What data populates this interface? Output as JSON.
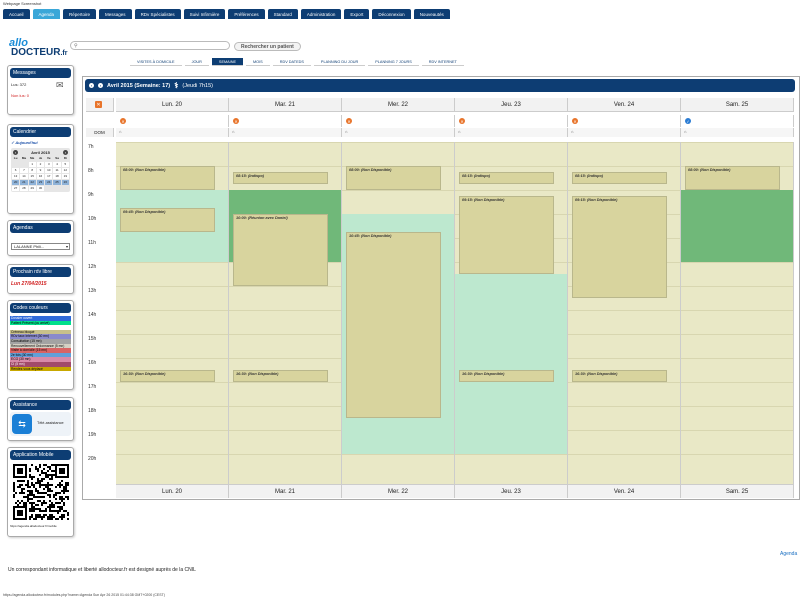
{
  "page_header": "Webpage Screenshot",
  "nav": [
    "Accueil",
    "Agenda",
    "Répertoire",
    "Messages",
    "RDv Spécialistes",
    "Suivi Infirmière",
    "Préférences",
    "Standard",
    "Administration",
    "Export",
    "Déconnexion",
    "Nouveautés"
  ],
  "nav_active": "Agenda",
  "logo": {
    "line1": "allo",
    "line2": "DOCTEUR",
    "suffix": ".fr"
  },
  "search": {
    "placeholder": "",
    "button_label": "Rechercher un patient"
  },
  "subtabs": [
    "VISITES À DOMICILE",
    "JOUR",
    "SEMAINE",
    "MOIS",
    "RDV DATEDS",
    "PLANNING DU JOUR",
    "PLANNING 7 JOURS",
    "RDV INTERNET"
  ],
  "subtab_active": "SEMAINE",
  "messages": {
    "title": "Messages",
    "lus_label": "Lus: 372",
    "non_lus_label": "Non lus: 0"
  },
  "calendar": {
    "title": "Calendrier",
    "today_label": "Aujourd'hui",
    "month_label": "Avril 2015",
    "weekday_headers": [
      "Lu",
      "Ma",
      "Me",
      "Je",
      "Ve",
      "Sa",
      "Di"
    ],
    "days": [
      "",
      "",
      "1",
      "2",
      "3",
      "4",
      "5",
      "6",
      "7",
      "8",
      "9",
      "10",
      "11",
      "12",
      "13",
      "14",
      "15",
      "16",
      "17",
      "18",
      "19",
      "20",
      "21",
      "22",
      "23",
      "24",
      "25",
      "26",
      "27",
      "28",
      "29",
      "30",
      "",
      ""
    ],
    "selected_days": [
      "20",
      "21",
      "22",
      "23",
      "24",
      "25",
      "26"
    ]
  },
  "agendas": {
    "title": "Agendas",
    "selected": "LALANNE Phili..."
  },
  "next_rdv": {
    "title": "Prochain rdv libre",
    "value": "Lun 27/04/2015"
  },
  "color_codes": {
    "title": "Codes couleurs",
    "items": [
      {
        "label": "Dossier ouvert",
        "color": "#2f6ad9",
        "text_color": "#fff"
      },
      {
        "label": "Patient Présent (ou arrivé)",
        "color": "#00e08c",
        "text_color": "#000"
      },
      {
        "label": "",
        "color": "#ffffff",
        "text_color": "#000"
      },
      {
        "label": "Créneau bloqué",
        "color": "#c8c08a",
        "text_color": "#000"
      },
      {
        "label": "RDv taux Internet (30 mn)",
        "color": "#8a8acb",
        "text_color": "#000"
      },
      {
        "label": "Consultation (15 mn)",
        "color": "#a3a3a3",
        "text_color": "#000"
      },
      {
        "label": "Renouvellement Ordonnance (5 mn)",
        "color": "#d4d0c4",
        "text_color": "#000"
      },
      {
        "label": "Visite à domicile (15 mn)",
        "color": "#d86464",
        "text_color": "#000"
      },
      {
        "label": "2e fois (30 mn)",
        "color": "#62a0d8",
        "text_color": "#000"
      },
      {
        "label": "ECG (30 mn)",
        "color": "#d88aa8",
        "text_color": "#000"
      },
      {
        "label": "CI (5 mn)",
        "color": "#a24a6a",
        "text_color": "#fff"
      },
      {
        "label": "Rendez-vous déplacé",
        "color": "#c8a800",
        "text_color": "#000"
      }
    ]
  },
  "assistance": {
    "title": "Assistance",
    "button_label": "Télé-assistance"
  },
  "mobile": {
    "title": "Application Mobile",
    "url": "https://agenda.allodocteur.fr/mobile"
  },
  "calendar_view": {
    "title": "Avril 2015 (Semaine: 17)",
    "now_label": "(Jeudi 7h15)",
    "dom_label": "DOM",
    "hours": [
      "7h",
      "8h",
      "9h",
      "10h",
      "11h",
      "12h",
      "13h",
      "14h",
      "15h",
      "16h",
      "17h",
      "18h",
      "19h",
      "20h"
    ],
    "days": [
      {
        "label": "Lun. 20",
        "status": "x",
        "appointments": [
          {
            "label": "08:00: (Non Disponible)",
            "start": 8.0,
            "end": 9.0
          },
          {
            "label": "09:45: (Non Disponible)",
            "start": 9.75,
            "end": 10.75
          },
          {
            "label": "16:30: (Non Disponible)",
            "start": 16.5,
            "end": 17.0
          }
        ],
        "green": [
          {
            "start": 9.0,
            "end": 12.0,
            "tone": "light"
          }
        ]
      },
      {
        "label": "Mar. 21",
        "status": "x",
        "appointments": [
          {
            "label": "08:15: (Indispo)",
            "start": 8.25,
            "end": 8.75
          },
          {
            "label": "10:00: (Réunion avec Daniel)",
            "start": 10.0,
            "end": 13.0
          },
          {
            "label": "16:30: (Non Disponible)",
            "start": 16.5,
            "end": 17.0
          }
        ],
        "green": [
          {
            "start": 9.0,
            "end": 12.0,
            "tone": "dark"
          }
        ]
      },
      {
        "label": "Mer. 22",
        "status": "x",
        "appointments": [
          {
            "label": "08:00: (Non Disponible)",
            "start": 8.0,
            "end": 9.0
          },
          {
            "label": "10:45: (Non Disponible)",
            "start": 10.75,
            "end": 18.5
          }
        ],
        "green": [
          {
            "start": 10.0,
            "end": 20.0,
            "tone": "light"
          }
        ]
      },
      {
        "label": "Jeu. 23",
        "status": "x",
        "appointments": [
          {
            "label": "08:15: (Indispo)",
            "start": 8.25,
            "end": 8.75
          },
          {
            "label": "09:15: (Non Disponible)",
            "start": 9.25,
            "end": 12.5
          },
          {
            "label": "16:30: (Non Disponible)",
            "start": 16.5,
            "end": 17.0
          }
        ],
        "green": [
          {
            "start": 12.5,
            "end": 20.0,
            "tone": "light"
          }
        ]
      },
      {
        "label": "Ven. 24",
        "status": "x",
        "appointments": [
          {
            "label": "08:15: (Indispo)",
            "start": 8.25,
            "end": 8.75
          },
          {
            "label": "09:15: (Non Disponible)",
            "start": 9.25,
            "end": 13.5
          },
          {
            "label": "16:30: (Non Disponible)",
            "start": 16.5,
            "end": 17.0
          }
        ],
        "green": []
      },
      {
        "label": "Sam. 25",
        "status": "ok",
        "appointments": [
          {
            "label": "08:00: (Non Disponible)",
            "start": 8.0,
            "end": 9.0
          }
        ],
        "green": [
          {
            "start": 9.0,
            "end": 12.0,
            "tone": "dark"
          }
        ]
      }
    ]
  },
  "agenda_link": "Agenda",
  "footnote": "Un correspondant informatique et liberté allodocteur.fr est designé auprès de la CNIL",
  "url_line": "https://agenda.allodocteur.fr/modules.php?name=Agenda Sun Apr 26 2015 01:44:38 GMT+0200 (CEST)"
}
